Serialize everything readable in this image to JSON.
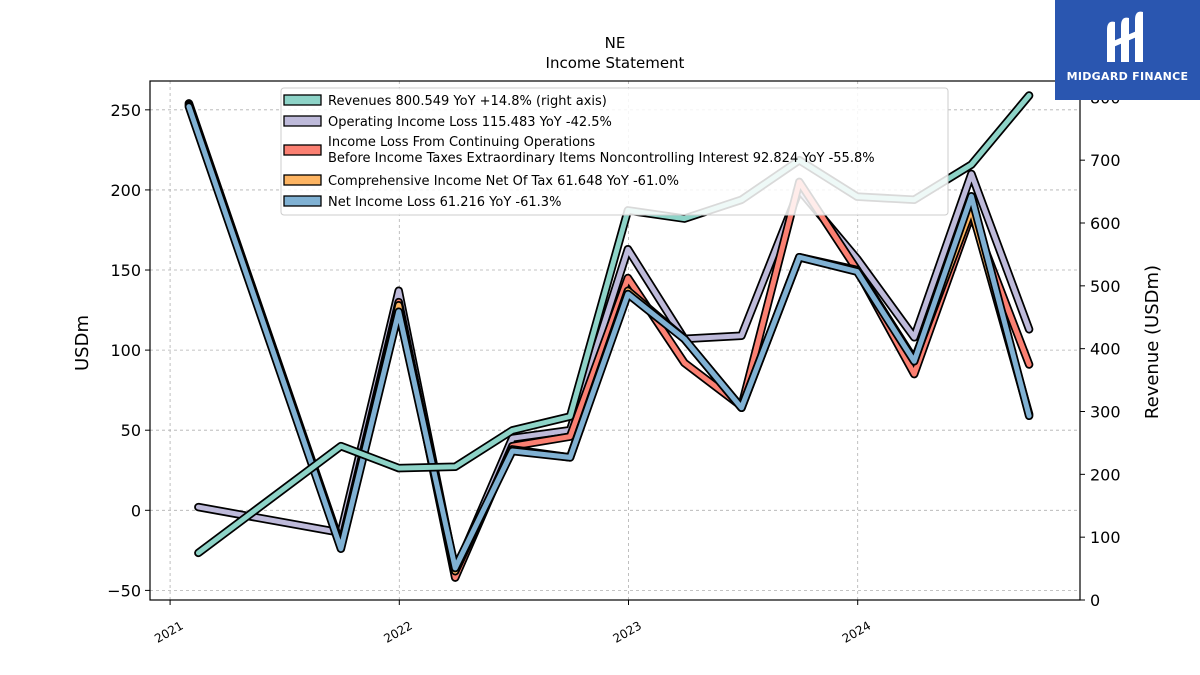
{
  "brand": {
    "name": "MIDGARD FINANCE",
    "bg_color": "#2a56b0"
  },
  "chart_data": {
    "type": "line",
    "title": "NE",
    "subtitle": "Income Statement",
    "ylabel": "USDm",
    "ylabel_right": "Revenue (USDm)",
    "ylim": [
      -56,
      268
    ],
    "ylim_right": [
      0,
      826
    ],
    "yticks": [
      -50,
      0,
      50,
      100,
      150,
      200,
      250
    ],
    "yticks_right": [
      0,
      100,
      200,
      300,
      400,
      500,
      600,
      700,
      800
    ],
    "xlim": [
      "2020-11-30",
      "2024-12-20"
    ],
    "xticks": [
      {
        "date": "2021-01-01",
        "label": "2021"
      },
      {
        "date": "2022-01-01",
        "label": "2022"
      },
      {
        "date": "2023-01-01",
        "label": "2023"
      },
      {
        "date": "2024-01-01",
        "label": "2024"
      }
    ],
    "grid": true,
    "legend_position": "top-center",
    "x": [
      "2021-02-15",
      "2021-09-30",
      "2021-12-31",
      "2022-03-31",
      "2022-06-30",
      "2022-09-30",
      "2022-12-31",
      "2023-03-31",
      "2023-06-30",
      "2023-09-30",
      "2023-12-31",
      "2024-03-31",
      "2024-06-30",
      "2024-09-30"
    ],
    "series": [
      {
        "name": "Revenues  800.549 YoY +14.8% (right axis)",
        "axis": "right",
        "color": "#8dd3c7",
        "values": [
          null,
          null,
          null,
          null,
          null,
          null,
          null,
          null,
          null,
          null,
          null,
          null,
          null,
          null
        ],
        "dates": [
          "2021-02-15",
          "2021-09-30",
          "2021-12-31",
          "2022-03-31",
          "2022-06-30",
          "2022-09-30",
          "2022-12-31",
          "2023-03-31",
          "2023-06-30",
          "2023-09-30",
          "2023-12-31",
          "2024-03-31",
          "2024-06-30",
          "2024-09-30"
        ],
        "rev_values": [
          75,
          245,
          210,
          212,
          270,
          292,
          620,
          607,
          637,
          700,
          642,
          637,
          693,
          803
        ]
      },
      {
        "name": "Operating Income Loss  115.483 YoY -42.5%",
        "axis": "left",
        "color": "#bebada",
        "dates": [
          "2021-02-15",
          "2021-09-30",
          "2021-12-31",
          "2022-03-31",
          "2022-06-30",
          "2022-09-30",
          "2022-12-31",
          "2023-03-31",
          "2023-06-30",
          "2023-09-30",
          "2023-12-31",
          "2024-03-31",
          "2024-06-30",
          "2024-09-30"
        ],
        "values": [
          2,
          -14,
          137,
          -38,
          45,
          50,
          163,
          107,
          109,
          200,
          157,
          108,
          210,
          113
        ]
      },
      {
        "name": "Income Loss From Continuing Operations\nBefore Income Taxes Extraordinary Items Noncontrolling Interest  92.824 YoY -55.8%",
        "axis": "left",
        "color": "#fb8072",
        "dates": [
          "2021-01-31",
          "2021-09-30",
          "2021-12-31",
          "2022-03-31",
          "2022-06-30",
          "2022-09-30",
          "2022-12-31",
          "2023-03-31",
          "2023-06-30",
          "2023-09-30",
          "2023-12-31",
          "2024-03-31",
          "2024-06-30",
          "2024-09-30"
        ],
        "values": [
          254,
          -22,
          130,
          -42,
          40,
          46,
          145,
          92,
          65,
          205,
          150,
          85,
          185,
          91
        ]
      },
      {
        "name": "Comprehensive Income Net Of Tax  61.648 YoY -61.0%",
        "axis": "left",
        "color": "#fdb462",
        "dates": [
          "2021-01-31",
          "2021-09-30",
          "2021-12-31",
          "2022-03-31",
          "2022-06-30",
          "2022-09-30",
          "2022-12-31",
          "2023-03-31",
          "2023-06-30",
          "2023-09-30",
          "2023-12-31",
          "2024-03-31",
          "2024-06-30",
          "2024-09-30"
        ],
        "values": [
          253,
          -23,
          128,
          -38,
          38,
          33,
          137,
          107,
          64,
          158,
          150,
          94,
          188,
          60
        ]
      },
      {
        "name": "Net Income Loss  61.216 YoY -61.3%",
        "axis": "left",
        "color": "#80b1d3",
        "dates": [
          "2021-01-31",
          "2021-09-30",
          "2021-12-31",
          "2022-03-31",
          "2022-06-30",
          "2022-09-30",
          "2022-12-31",
          "2023-03-31",
          "2023-06-30",
          "2023-09-30",
          "2023-12-31",
          "2024-03-31",
          "2024-06-30",
          "2024-09-30"
        ],
        "values": [
          252,
          -24,
          124,
          -36,
          37,
          33,
          135,
          107,
          64,
          158,
          149,
          93,
          196,
          59
        ]
      }
    ]
  }
}
